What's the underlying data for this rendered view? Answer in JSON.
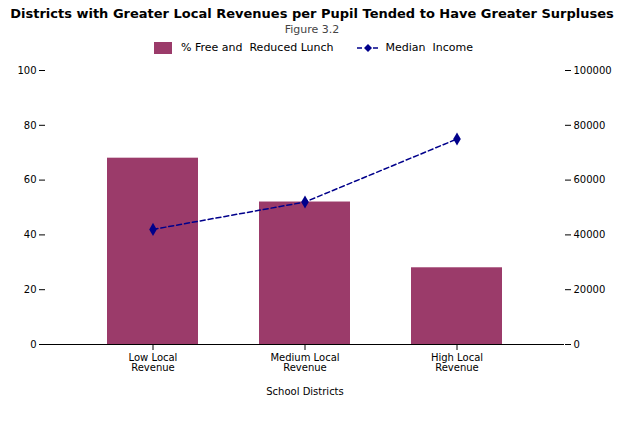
{
  "chart_data": {
    "type": "bar",
    "title": "Districts with Greater Local Revenues per Pupil Tended to Have Greater Surpluses",
    "subtitle": "Figure 3.2",
    "xlabel": "School Districts",
    "categories": [
      "Low Local\nRevenue",
      "Medium Local\nRevenue",
      "High Local\nRevenue"
    ],
    "series": [
      {
        "name": "% Free and  Reduced Lunch",
        "type": "bar",
        "color": "#9B3B6A",
        "values": [
          68,
          52,
          28
        ]
      },
      {
        "name": "Median  Income",
        "type": "line",
        "axis": "y2",
        "color": "#00008B",
        "marker": "diamond",
        "line_style": "dashed",
        "values": [
          42000,
          52000,
          75000
        ]
      }
    ],
    "ylim": [
      0,
      100
    ],
    "yticks": [
      0,
      20,
      40,
      60,
      80,
      100
    ],
    "y2lim": [
      0,
      100000
    ],
    "y2ticks": [
      0,
      20000,
      40000,
      60000,
      80000,
      100000
    ],
    "grid": false,
    "legend": "top"
  }
}
